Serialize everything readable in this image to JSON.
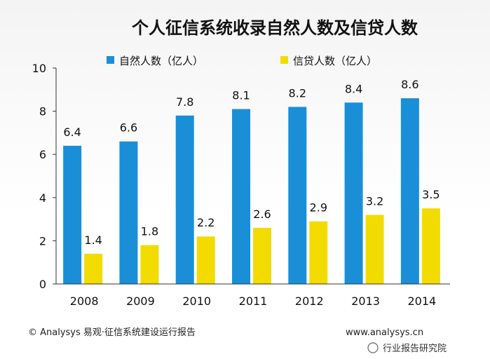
{
  "chart_data": {
    "type": "bar",
    "title": "个人征信系统收录自然人数及信贷人数",
    "categories": [
      "2008",
      "2009",
      "2010",
      "2011",
      "2012",
      "2013",
      "2014"
    ],
    "series": [
      {
        "name": "自然人数（亿人）",
        "color": "#1a8fd8",
        "values": [
          6.4,
          6.6,
          7.8,
          8.1,
          8.2,
          8.4,
          8.6
        ]
      },
      {
        "name": "信贷人数（亿人）",
        "color": "#f2dc00",
        "values": [
          1.4,
          1.8,
          2.2,
          2.6,
          2.9,
          3.2,
          3.5
        ]
      }
    ],
    "ylim": [
      0,
      10
    ],
    "yticks": [
      0,
      2,
      4,
      6,
      8,
      10
    ],
    "grid": false,
    "legend_position": "top"
  },
  "footer": {
    "source": "© Analysys 易观·征信系统建设运行报告",
    "url": "www.analysys.cn",
    "watermark_account": "行业报告研究院"
  }
}
